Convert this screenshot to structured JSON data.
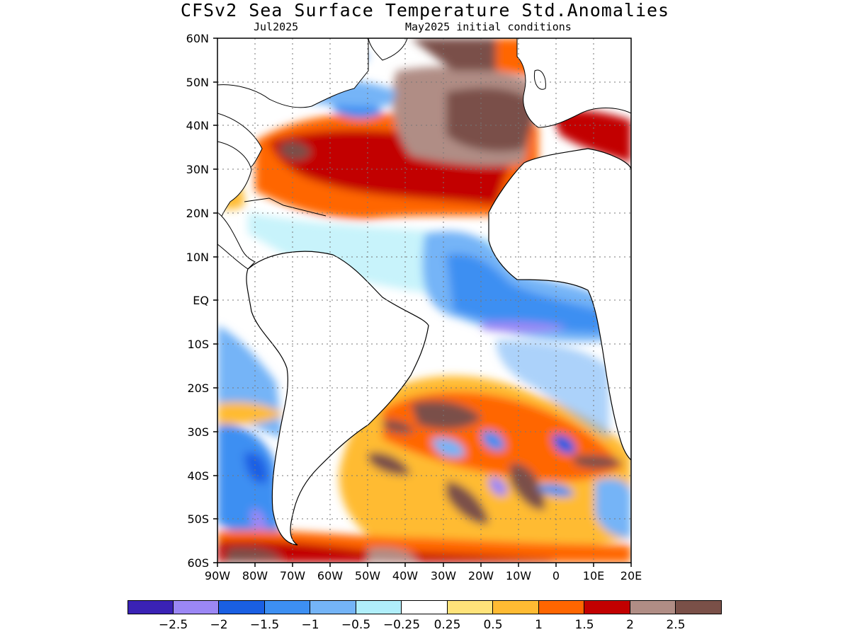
{
  "header": {
    "title": "CFSv2 Sea Surface Temperature Std.Anomalies",
    "valid_month": "Jul2025",
    "init_conditions": "May2025 initial conditions"
  },
  "map": {
    "lat_labels": [
      "60N",
      "50N",
      "40N",
      "30N",
      "20N",
      "10N",
      "EQ",
      "10S",
      "20S",
      "30S",
      "40S",
      "50S",
      "60S"
    ],
    "lon_labels": [
      "90W",
      "80W",
      "70W",
      "60W",
      "50W",
      "40W",
      "30W",
      "20W",
      "10W",
      "0",
      "10E",
      "20E"
    ],
    "lat_range": [
      -60,
      60
    ],
    "lon_range": [
      -90,
      20
    ],
    "grid": true
  },
  "colorbar": {
    "colors": [
      "#3a22b5",
      "#9b87f5",
      "#1a5fe3",
      "#3d8ff2",
      "#74b4f7",
      "#b0eefa",
      "#ffffff",
      "#ffe37a",
      "#ffbb33",
      "#ff6600",
      "#c20000",
      "#b08d85",
      "#7a5048"
    ],
    "labels": [
      "−2.5",
      "−2",
      "−1.5",
      "−1",
      "−0.5",
      "−0.25",
      "0.25",
      "0.5",
      "1",
      "1.5",
      "2",
      "2.5"
    ]
  }
}
